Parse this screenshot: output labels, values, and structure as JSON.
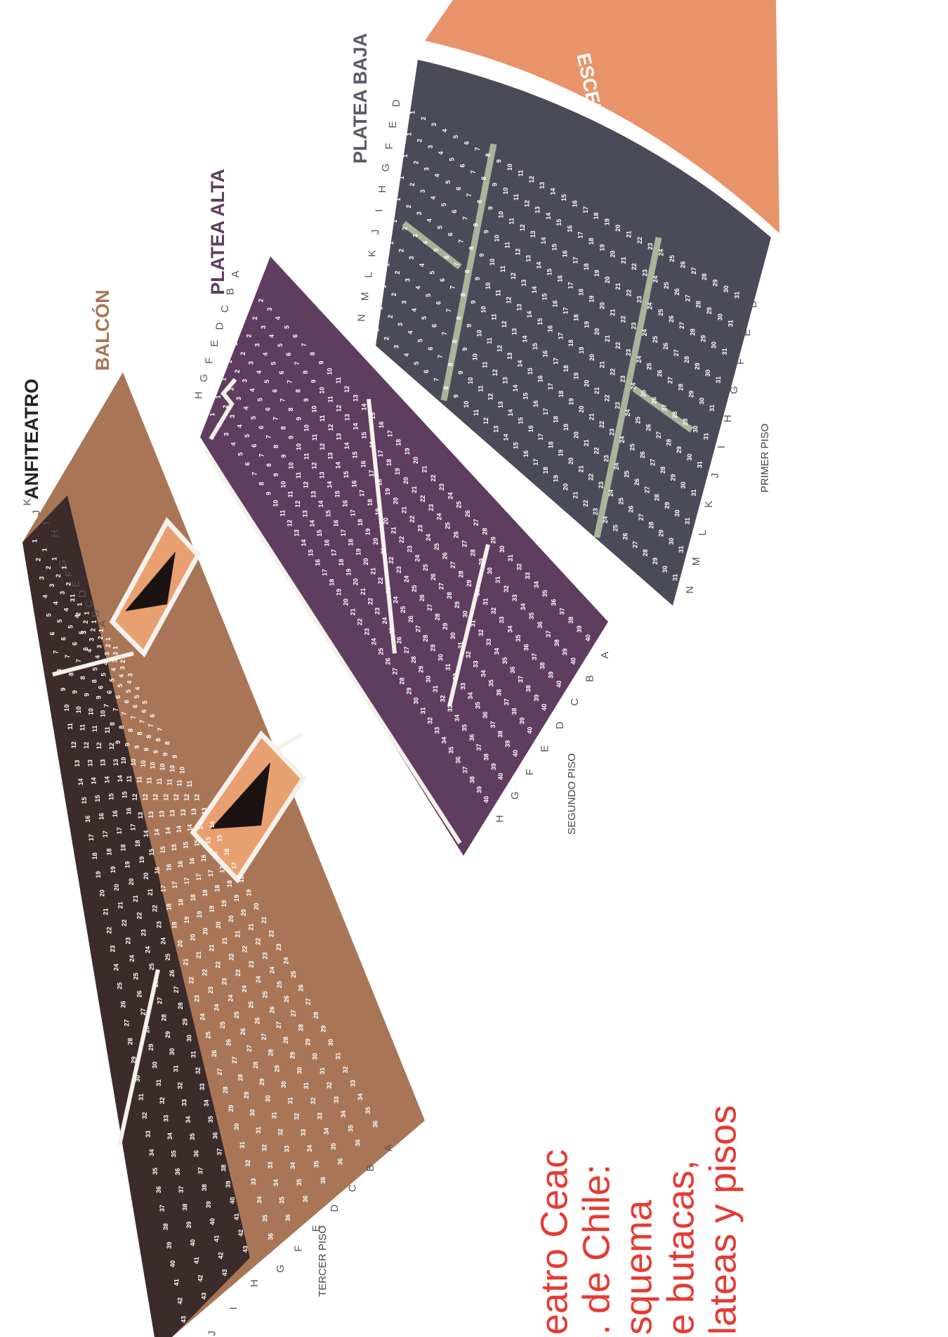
{
  "stage": "ESCENARIO",
  "sections": [
    {
      "name": "PLATEA BAJA",
      "rows": [
        {
          "label": "D",
          "seats": [
            1,
            2,
            3,
            4,
            5,
            6,
            7,
            8,
            9,
            10,
            11,
            12,
            13,
            14,
            15,
            16,
            17,
            18,
            19,
            20,
            21,
            22,
            23,
            24,
            25,
            26,
            27,
            28,
            29,
            30,
            31
          ]
        },
        {
          "label": "E",
          "seats": [
            1,
            2,
            3,
            4,
            5,
            6,
            7,
            8,
            9,
            10,
            11,
            12,
            13,
            14,
            15,
            16,
            17,
            18,
            19,
            20,
            21,
            22,
            23,
            24,
            25,
            26,
            27,
            28,
            29,
            30,
            31
          ]
        },
        {
          "label": "F",
          "seats": [
            1,
            2,
            3,
            4,
            5,
            6,
            7,
            8,
            9,
            10,
            11,
            12,
            13,
            14,
            15,
            16,
            17,
            18,
            19,
            20,
            21,
            22,
            23,
            24,
            25,
            26,
            27,
            28,
            29,
            30,
            31
          ]
        },
        {
          "label": "G",
          "seats": [
            1,
            2,
            3,
            4,
            5,
            6,
            7,
            8,
            9,
            10,
            11,
            12,
            13,
            14,
            15,
            16,
            17,
            18,
            19,
            20,
            21,
            22,
            23,
            24,
            25,
            26,
            27,
            28,
            29,
            30,
            31
          ]
        },
        {
          "label": "H",
          "seats": [
            1,
            2,
            3,
            4,
            5,
            6,
            7,
            8,
            9,
            10,
            11,
            12,
            13,
            14,
            15,
            16,
            17,
            18,
            19,
            20,
            21,
            22,
            23,
            24,
            25,
            26,
            27,
            28,
            29,
            30,
            31
          ]
        },
        {
          "label": "I",
          "seats": [
            1,
            2,
            3,
            4,
            5,
            6,
            7,
            8,
            9,
            10,
            11,
            12,
            13,
            14,
            15,
            16,
            17,
            18,
            19,
            20,
            21,
            22,
            23,
            24,
            25,
            26,
            27,
            28,
            29,
            30,
            31
          ]
        },
        {
          "label": "J",
          "seats": [
            1,
            2,
            3,
            4,
            5,
            6,
            7,
            8,
            9,
            10,
            11,
            12,
            13,
            14,
            15,
            16,
            17,
            18,
            19,
            20,
            21,
            22,
            23,
            24,
            25,
            26,
            27,
            28,
            29,
            30,
            31
          ]
        },
        {
          "label": "K",
          "seats": [
            1,
            2,
            3,
            4,
            5,
            6,
            7,
            8,
            9,
            10,
            11,
            12,
            13,
            14,
            15,
            16,
            17,
            18,
            19,
            20,
            21,
            22,
            23,
            24,
            25,
            26,
            27,
            28,
            29,
            30,
            31
          ]
        },
        {
          "label": "L",
          "seats": [
            1,
            2,
            3,
            4,
            5,
            6,
            7,
            8,
            9,
            10,
            11,
            12,
            13,
            14,
            15,
            16,
            17,
            18,
            19,
            20,
            21,
            22,
            23,
            24,
            25,
            26,
            27,
            28,
            29,
            30,
            31
          ]
        },
        {
          "label": "M",
          "seats": [
            1,
            2,
            3,
            4,
            5,
            6,
            7,
            8,
            9,
            10,
            11,
            12,
            13,
            14,
            15,
            16,
            17,
            18,
            19,
            20,
            21,
            22,
            23,
            24,
            25,
            26,
            27,
            28,
            29,
            30,
            31
          ]
        },
        {
          "label": "N",
          "seats": [
            1,
            2,
            3,
            4,
            5,
            6,
            7,
            8,
            9,
            10,
            11,
            12,
            13,
            14,
            15,
            16,
            17,
            18,
            19,
            20,
            21,
            22,
            23,
            24,
            25,
            26,
            27,
            28,
            29,
            30,
            31
          ]
        }
      ]
    },
    {
      "name": "PLATEA ALTA",
      "rows": [
        {
          "label": "A",
          "seats": [
            1,
            2,
            3,
            4,
            5,
            6,
            7,
            8,
            9,
            10,
            11,
            12,
            13,
            14,
            15,
            16,
            17,
            18,
            19,
            20,
            21,
            22,
            23,
            24,
            25,
            26,
            27,
            28,
            29,
            30,
            31,
            32,
            33,
            34,
            35,
            36,
            37,
            38,
            39,
            40
          ]
        },
        {
          "label": "B",
          "seats": [
            1,
            2,
            3,
            4,
            5,
            6,
            7,
            8,
            9,
            10,
            11,
            12,
            13,
            14,
            15,
            16,
            17,
            18,
            19,
            20,
            21,
            22,
            23,
            24,
            25,
            26,
            27,
            28,
            29,
            30,
            31,
            32,
            33,
            34,
            35,
            36,
            37,
            38,
            39,
            40
          ]
        },
        {
          "label": "C",
          "seats": [
            1,
            2,
            3,
            4,
            5,
            6,
            7,
            8,
            9,
            10,
            11,
            12,
            13,
            14,
            15,
            16,
            17,
            18,
            19,
            20,
            21,
            22,
            23,
            24,
            25,
            26,
            27,
            28,
            29,
            30,
            31,
            32,
            33,
            34,
            35,
            36,
            37,
            38,
            39,
            40
          ]
        },
        {
          "label": "D",
          "seats": [
            1,
            2,
            3,
            4,
            5,
            6,
            7,
            8,
            9,
            10,
            11,
            12,
            13,
            14,
            15,
            16,
            17,
            18,
            19,
            20,
            21,
            22,
            23,
            24,
            25,
            26,
            27,
            28,
            29,
            30,
            31,
            32,
            33,
            34,
            35,
            36,
            37,
            38,
            39,
            40
          ]
        },
        {
          "label": "E",
          "seats": [
            1,
            2,
            3,
            4,
            5,
            6,
            7,
            8,
            9,
            10,
            11,
            12,
            13,
            14,
            15,
            16,
            17,
            18,
            19,
            20,
            21,
            22,
            23,
            24,
            25,
            26,
            27,
            28,
            29,
            30,
            31,
            32,
            33,
            34,
            35,
            36,
            37,
            38,
            39,
            40
          ]
        },
        {
          "label": "F",
          "seats": [
            1,
            2,
            3,
            4,
            5,
            6,
            7,
            8,
            9,
            10,
            11,
            12,
            13,
            14,
            15,
            16,
            17,
            18,
            19,
            20,
            21,
            22,
            23,
            24,
            25,
            26,
            27,
            28,
            29,
            30,
            31,
            32,
            33,
            34,
            35,
            36,
            37,
            38,
            39,
            40
          ]
        },
        {
          "label": "G",
          "seats": [
            1,
            2,
            3,
            4,
            5,
            6,
            7,
            8,
            9,
            10,
            11,
            12,
            13,
            14,
            15,
            16,
            17,
            18,
            19,
            20,
            21,
            22,
            23,
            24,
            25,
            26,
            27,
            28,
            29,
            30,
            31,
            32,
            33,
            34,
            35,
            36,
            37,
            38,
            39,
            40
          ]
        },
        {
          "label": "H",
          "seats": [
            1,
            2,
            3,
            4,
            5,
            6,
            7,
            8,
            9,
            10,
            11,
            12,
            13,
            14,
            15,
            16,
            17,
            18,
            19,
            20,
            21,
            22,
            23,
            24,
            25,
            26,
            27,
            28,
            29,
            30,
            31,
            32,
            33,
            34,
            35,
            36,
            37,
            38,
            39,
            40
          ]
        }
      ]
    },
    {
      "name": "BALCÓN",
      "rows": [
        {
          "label": "A",
          "seats": [
            1,
            2,
            3,
            4,
            5,
            6,
            7,
            8,
            9,
            10,
            11,
            12,
            13,
            14,
            15,
            16,
            17,
            18,
            19,
            20,
            21,
            22,
            23,
            24,
            25,
            26,
            27,
            28,
            29,
            30,
            31,
            32,
            33,
            34,
            35,
            36
          ]
        },
        {
          "label": "B",
          "seats": [
            1,
            2,
            3,
            4,
            5,
            6,
            7,
            8,
            9,
            10,
            11,
            12,
            13,
            14,
            15,
            16,
            17,
            18,
            19,
            20,
            21,
            22,
            23,
            24,
            25,
            26,
            27,
            28,
            29,
            30,
            31,
            32,
            33,
            34,
            35,
            36
          ]
        },
        {
          "label": "C",
          "seats": [
            1,
            2,
            3,
            4,
            5,
            6,
            7,
            8,
            9,
            10,
            11,
            12,
            13,
            14,
            15,
            16,
            17,
            18,
            19,
            20,
            21,
            22,
            23,
            24,
            25,
            26,
            27,
            28,
            29,
            30,
            31,
            32,
            33,
            34,
            35,
            36
          ]
        },
        {
          "label": "D",
          "seats": [
            1,
            2,
            3,
            4,
            5,
            6,
            7,
            8,
            9,
            10,
            11,
            12,
            13,
            14,
            15,
            16,
            17,
            18,
            19,
            20,
            21,
            22,
            23,
            24,
            25,
            26,
            27,
            28,
            29,
            30,
            31,
            32,
            33,
            34,
            35,
            36
          ]
        },
        {
          "label": "E",
          "seats": [
            1,
            2,
            3,
            4,
            5,
            6,
            7,
            8,
            9,
            10,
            11,
            12,
            13,
            14,
            15,
            16,
            17,
            18,
            19,
            20,
            21,
            22,
            23,
            24,
            25,
            26,
            27,
            28,
            29,
            30,
            31,
            32,
            33,
            34,
            35,
            36
          ]
        },
        {
          "label": "F",
          "seats": [
            1,
            2,
            3,
            4,
            5,
            6,
            7,
            8,
            9,
            10,
            11,
            12,
            13,
            14,
            15,
            16,
            17,
            18,
            19,
            20,
            21,
            22,
            23,
            24,
            25,
            26,
            27,
            28,
            29,
            30,
            31,
            32,
            33,
            34,
            35,
            36
          ]
        },
        {
          "label": "G",
          "seats": [
            1,
            2,
            3,
            4,
            5,
            6,
            7,
            8,
            9,
            10,
            11,
            12,
            13,
            14,
            15,
            16,
            17,
            18,
            19,
            20,
            21,
            22,
            23,
            24,
            25,
            26,
            27,
            28,
            29,
            30,
            31,
            32,
            33,
            34,
            35,
            36
          ]
        }
      ]
    },
    {
      "name": "ANFITEATRO",
      "rows": [
        {
          "label": "H",
          "seats": [
            1,
            2,
            3,
            4,
            5,
            6,
            7,
            8,
            9,
            10,
            11,
            12,
            13,
            14,
            15,
            16,
            17,
            18,
            19,
            20,
            21,
            22,
            23,
            24,
            25,
            26,
            27,
            28,
            29,
            30,
            31,
            32,
            33,
            34,
            35,
            36,
            37,
            38,
            39,
            40,
            41,
            42,
            43
          ]
        },
        {
          "label": "I",
          "seats": [
            1,
            2,
            3,
            4,
            5,
            6,
            7,
            8,
            9,
            10,
            11,
            12,
            13,
            14,
            15,
            16,
            17,
            18,
            19,
            20,
            21,
            22,
            23,
            24,
            25,
            26,
            27,
            28,
            29,
            30,
            31,
            32,
            33,
            34,
            35,
            36,
            37,
            38,
            39,
            40,
            41,
            42,
            43
          ]
        },
        {
          "label": "J",
          "seats": [
            1,
            2,
            3,
            4,
            5,
            6,
            7,
            8,
            9,
            10,
            11,
            12,
            13,
            14,
            15,
            16,
            17,
            18,
            19,
            20,
            21,
            22,
            23,
            24,
            25,
            26,
            27,
            28,
            29,
            30,
            31,
            32,
            33,
            34,
            35,
            36,
            37,
            38,
            39,
            40,
            41,
            42,
            43
          ]
        },
        {
          "label": "K",
          "seats": [
            1,
            2,
            3,
            4,
            5,
            6,
            7,
            8,
            9,
            10,
            11,
            12,
            13,
            14,
            15,
            16,
            17,
            18,
            19,
            20,
            21,
            22,
            23,
            24,
            25,
            26,
            27,
            28,
            29,
            30,
            31,
            32,
            33,
            34,
            35,
            36,
            37,
            38,
            39,
            40,
            41,
            42,
            43
          ]
        }
      ]
    }
  ],
  "floors": [
    "PRIMER PISO",
    "SEGUNDO PISO",
    "TERCER PISO"
  ],
  "caption": [
    "eatro Ceac",
    ". de Chile:",
    "squema",
    "e butacas,",
    "lateas y pisos"
  ]
}
